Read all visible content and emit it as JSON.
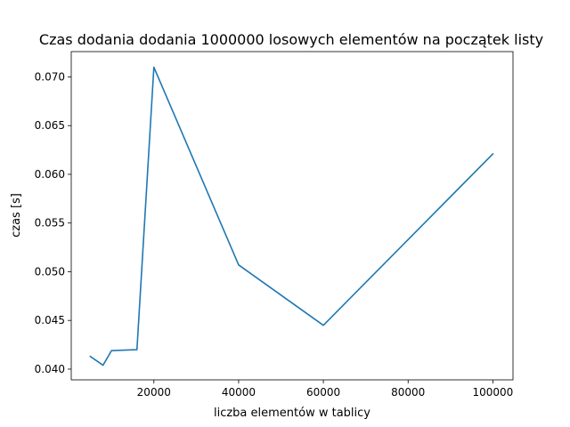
{
  "chart_data": {
    "type": "line",
    "title": "Czas dodania dodania 1000000 losowych elementów na początek listy",
    "xlabel": "liczba elementów w tablicy",
    "ylabel": "czas [s]",
    "xlim": [
      500,
      104750
    ],
    "ylim": [
      0.0389,
      0.0726
    ],
    "x_ticks": [
      20000,
      40000,
      60000,
      80000,
      100000
    ],
    "x_tick_labels": [
      "20000",
      "40000",
      "60000",
      "80000",
      "100000"
    ],
    "y_ticks": [
      0.04,
      0.045,
      0.05,
      0.055,
      0.06,
      0.065,
      0.07
    ],
    "y_tick_labels": [
      "0.040",
      "0.045",
      "0.050",
      "0.055",
      "0.060",
      "0.065",
      "0.070"
    ],
    "grid": false,
    "series": [
      {
        "color": "#1f77b4",
        "x": [
          5000,
          8000,
          10000,
          16000,
          20000,
          40000,
          60000,
          100000
        ],
        "y": [
          0.0413,
          0.0404,
          0.0419,
          0.042,
          0.071,
          0.0507,
          0.0445,
          0.0621
        ]
      }
    ]
  }
}
